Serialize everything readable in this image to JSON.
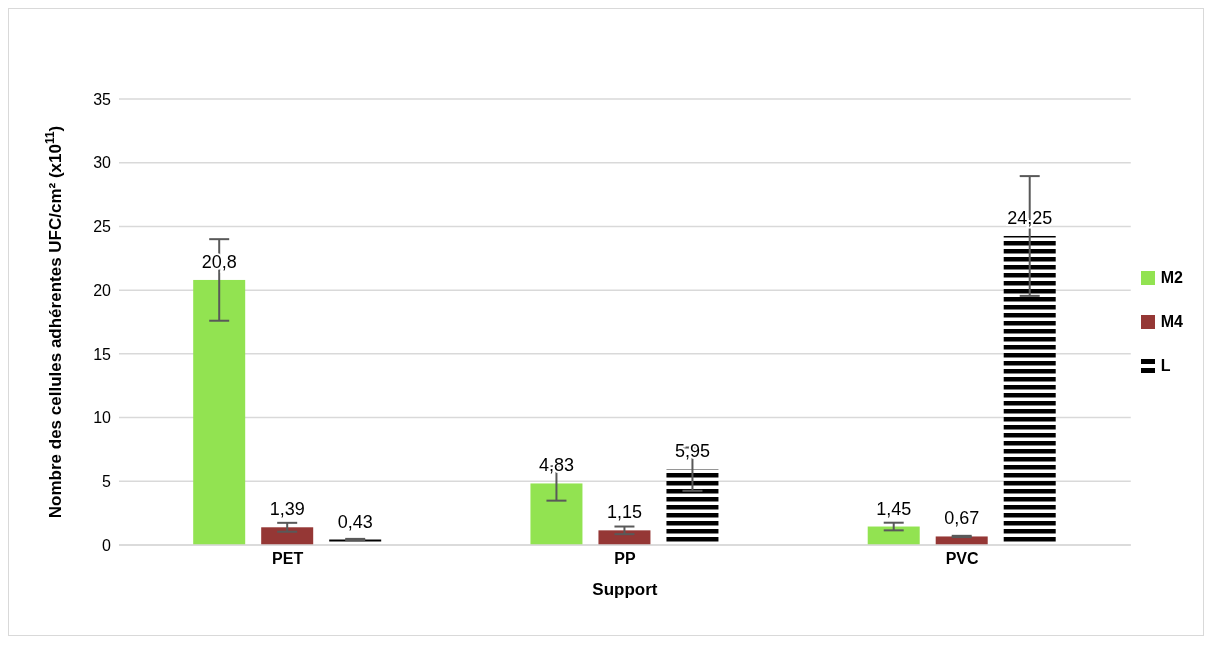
{
  "chart_data": {
    "type": "bar",
    "xlabel": "Support",
    "ylabel": "Nombre des cellules adhérentes UFC/cm² (x10$^{11}$)",
    "categories": [
      "PET",
      "PP",
      "PVC"
    ],
    "series": [
      {
        "name": "M2",
        "color": "#92e351",
        "values": [
          20.8,
          4.83,
          1.45
        ],
        "errors": [
          3.2,
          1.35,
          0.3
        ],
        "value_labels": [
          "20,8",
          "4,83",
          "1,45"
        ]
      },
      {
        "name": "M4",
        "color": "#953735",
        "values": [
          1.39,
          1.15,
          0.67
        ],
        "errors": [
          0.35,
          0.3,
          0.05
        ],
        "value_labels": [
          "1,39",
          "1,15",
          "0,67"
        ]
      },
      {
        "name": "L",
        "color": "#000000",
        "values": [
          0.43,
          5.95,
          24.25
        ],
        "errors": [
          0.05,
          1.7,
          4.7
        ],
        "value_labels": [
          "0,43",
          "5,95",
          "24,25"
        ]
      }
    ],
    "ylim": [
      0,
      35
    ],
    "yticks": [
      0,
      5,
      10,
      15,
      20,
      25,
      30,
      35
    ],
    "grid": "y",
    "legend": "right"
  }
}
